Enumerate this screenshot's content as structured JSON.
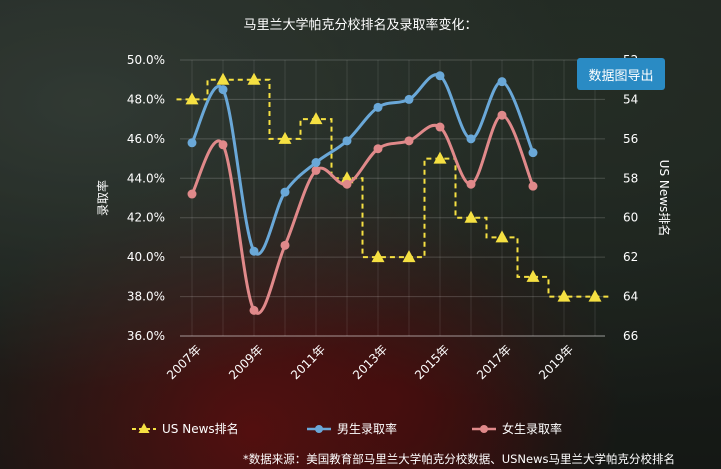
{
  "title": "马里兰大学帕克分校排名及录取率变化：",
  "export_label": "数据图导出",
  "source_note": "*数据来源：美国教育部马里兰大学帕克分校数据、USNews马里兰大学帕克分校排名",
  "legend": {
    "rank_label": "US News排名",
    "male_label": "男生录取率",
    "female_label": "女生录取率"
  },
  "colors": {
    "rank": "#f5e042",
    "male": "#6aa8d8",
    "female": "#e0898a"
  },
  "chart_data": {
    "type": "line",
    "title": "马里兰大学帕克分校排名及录取率变化：",
    "ylabel": "录取率",
    "y2label": "US News排名",
    "ylim": [
      36,
      50
    ],
    "y2lim": [
      52,
      66
    ],
    "y2_inverted": true,
    "x_tick_labels": [
      "2007年",
      "2009年",
      "2011年",
      "2013年",
      "2015年",
      "2017年",
      "2019年"
    ],
    "y_tick_labels": [
      "36.0%",
      "38.0%",
      "40.0%",
      "42.0%",
      "44.0%",
      "46.0%",
      "48.0%",
      "50.0%"
    ],
    "y2_tick_labels": [
      "52",
      "54",
      "56",
      "58",
      "60",
      "62",
      "64",
      "66"
    ],
    "grid": true,
    "legend_position": "bottom",
    "series": [
      {
        "name": "US News排名",
        "axis": "right",
        "style": "dashed-step",
        "x": [
          2007,
          2008,
          2009,
          2010,
          2011,
          2012,
          2013,
          2014,
          2015,
          2016,
          2017,
          2018,
          2019,
          2020
        ],
        "values": [
          54,
          53,
          53,
          56,
          55,
          58,
          62,
          62,
          57,
          60,
          61,
          63,
          64,
          64
        ]
      },
      {
        "name": "男生录取率",
        "axis": "left",
        "x": [
          2007,
          2008,
          2009,
          2010,
          2011,
          2012,
          2013,
          2014,
          2015,
          2016,
          2017,
          2018
        ],
        "values": [
          45.8,
          48.5,
          40.3,
          43.3,
          44.8,
          45.9,
          47.6,
          48.0,
          49.2,
          46.0,
          48.9,
          45.3
        ]
      },
      {
        "name": "女生录取率",
        "axis": "left",
        "x": [
          2007,
          2008,
          2009,
          2010,
          2011,
          2012,
          2013,
          2014,
          2015,
          2016,
          2017,
          2018
        ],
        "values": [
          43.2,
          45.7,
          37.3,
          40.6,
          44.4,
          43.7,
          45.5,
          45.9,
          46.6,
          43.7,
          47.2,
          43.6
        ]
      }
    ]
  }
}
